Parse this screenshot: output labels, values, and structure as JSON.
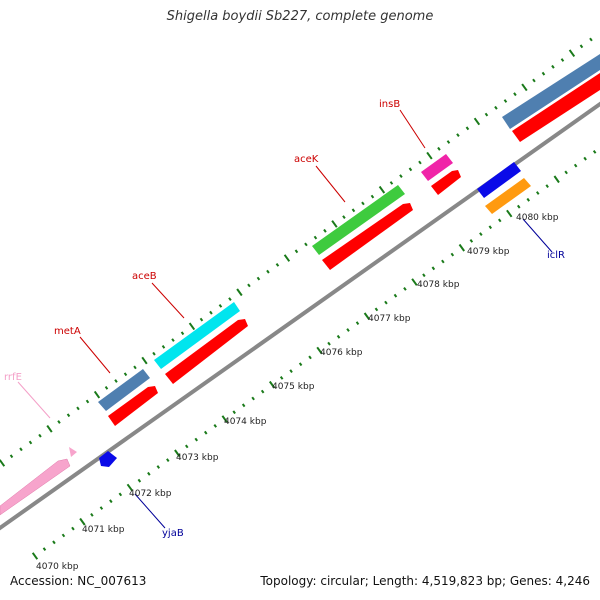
{
  "title": "Shigella boydii Sb227, complete genome",
  "footer": {
    "accession": "Accession: NC_007613",
    "summary": "Topology: circular; Length: 4,519,823 bp; Genes: 4,246"
  },
  "ticks": {
    "labels": [
      "4070 kbp",
      "4071 kbp",
      "4072 kbp",
      "4073 kbp",
      "4074 kbp",
      "4075 kbp",
      "4076 kbp",
      "4077 kbp",
      "4078 kbp",
      "4079 kbp",
      "4080 kbp"
    ]
  },
  "genes": {
    "rrfE": {
      "label": "rrfE",
      "color": "#f4a0c8"
    },
    "metA": {
      "label": "metA",
      "color": "#cc0000"
    },
    "aceB": {
      "label": "aceB",
      "color": "#cc0000"
    },
    "aceK": {
      "label": "aceK",
      "color": "#cc0000"
    },
    "insB": {
      "label": "insB",
      "color": "#cc0000"
    },
    "yjaB": {
      "label": "yjaB",
      "color": "#000099"
    },
    "iclR": {
      "label": "iclR",
      "color": "#000099"
    }
  },
  "colors": {
    "backbone": "#888888",
    "tick": "#1a7a1a",
    "cds": "#ff0000",
    "steelblue": "#4f7fb0",
    "cyan": "#00e5ee",
    "green": "#3ecb3e",
    "pink": "#f7a4cc",
    "magenta": "#f024a8",
    "blue": "#0a0ae8",
    "orange": "#ff9a10"
  }
}
